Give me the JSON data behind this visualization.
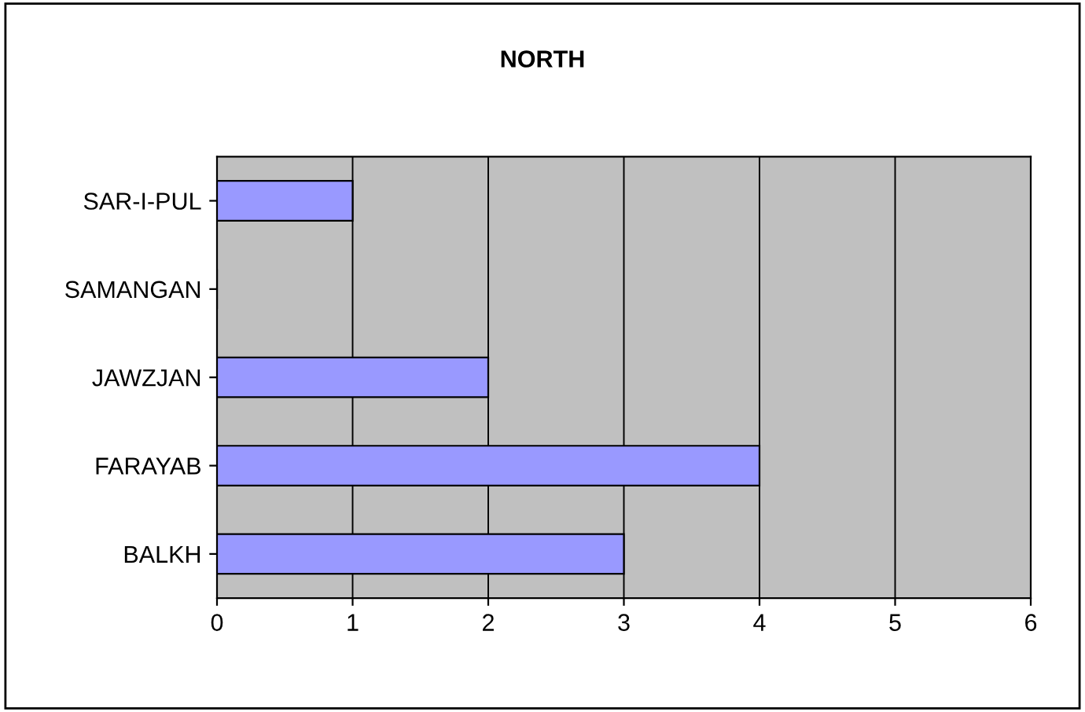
{
  "chart_data": {
    "type": "bar",
    "orientation": "horizontal",
    "title": "NORTH",
    "categories": [
      "SAR-I-PUL",
      "SAMANGAN",
      "JAWZJAN",
      "FARAYAB",
      "BALKH"
    ],
    "values": [
      1,
      0,
      2,
      4,
      3
    ],
    "color": "#9999ff",
    "xlim": [
      0,
      6
    ],
    "xticks": [
      0,
      1,
      2,
      3,
      4,
      5,
      6
    ],
    "grid": "x"
  }
}
